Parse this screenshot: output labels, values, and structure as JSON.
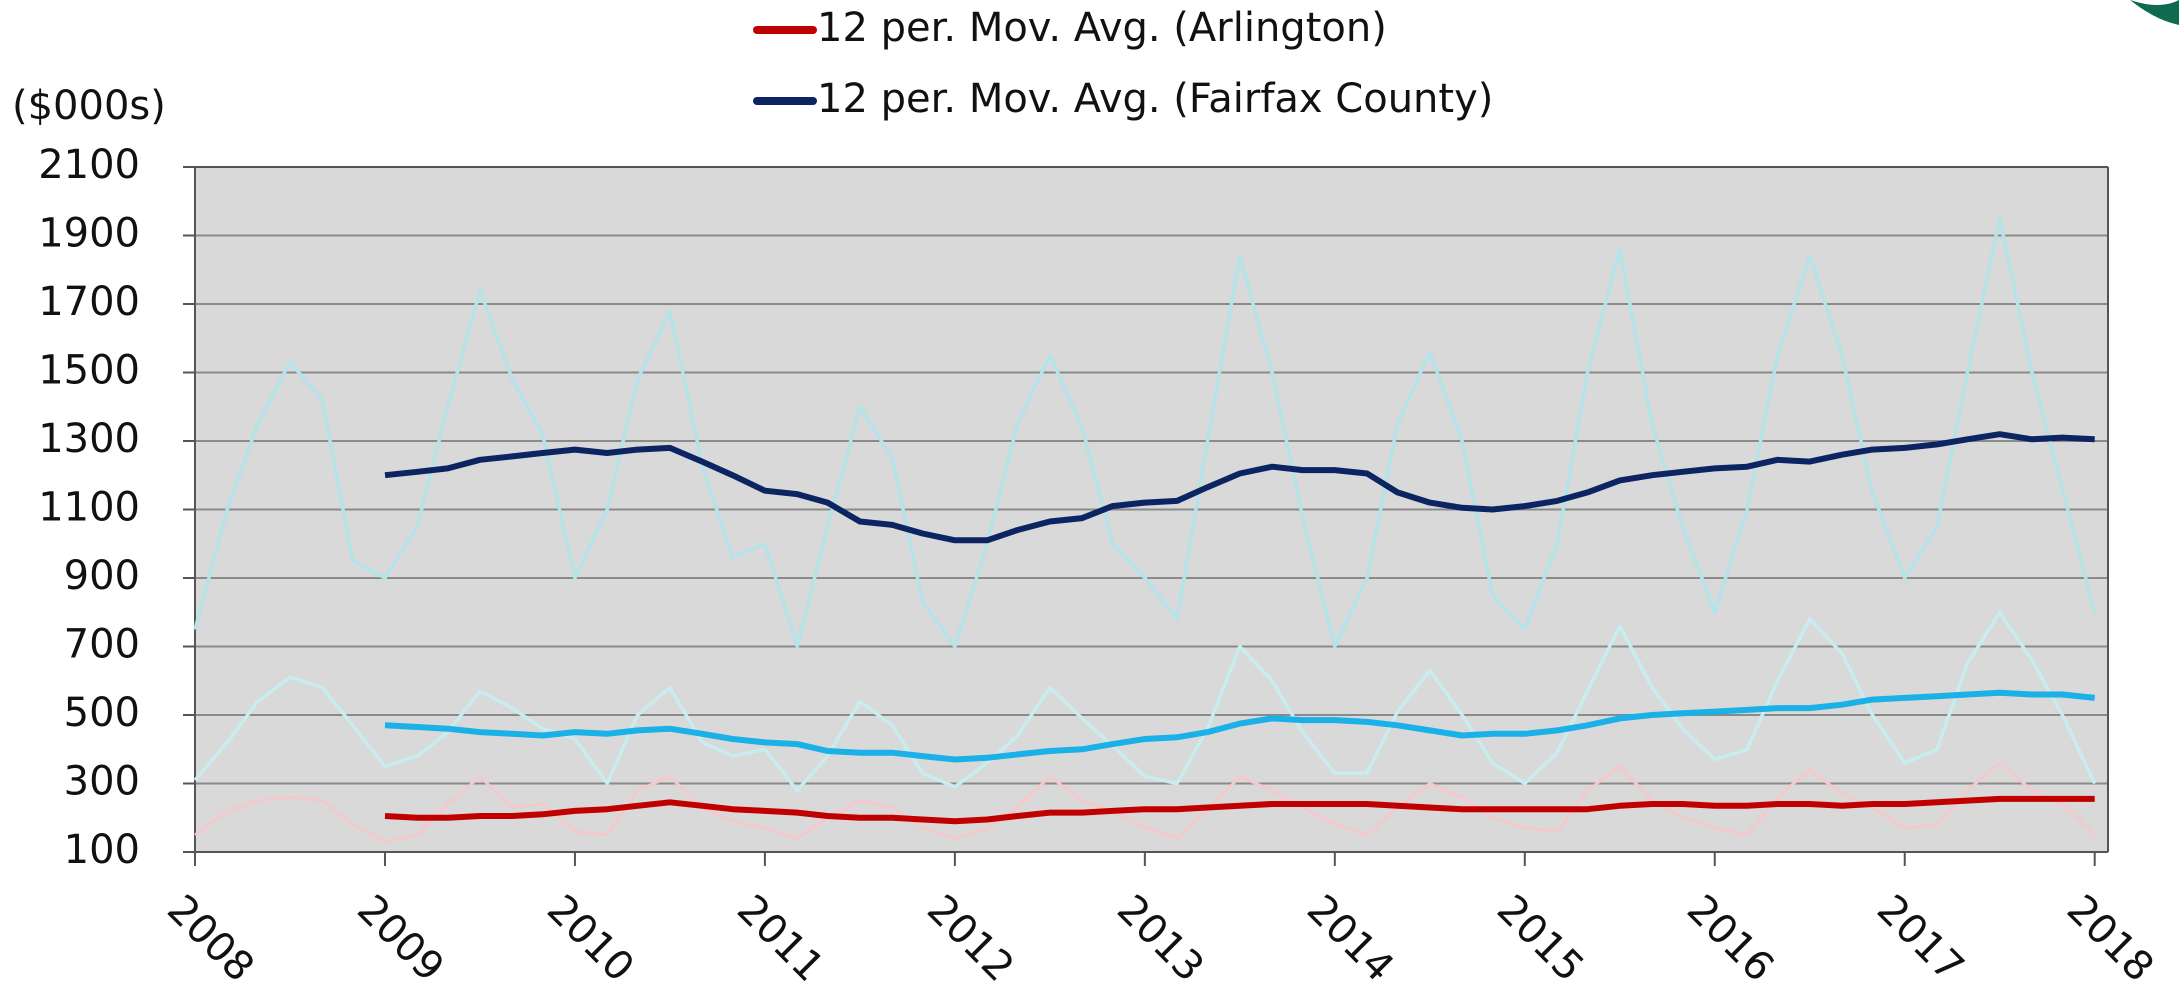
{
  "chart_data": {
    "type": "line",
    "ylabel": "($000s)",
    "x": [
      2008,
      2008.17,
      2008.33,
      2008.5,
      2008.67,
      2008.83,
      2009,
      2009.17,
      2009.33,
      2009.5,
      2009.67,
      2009.83,
      2010,
      2010.17,
      2010.33,
      2010.5,
      2010.67,
      2010.83,
      2011,
      2011.17,
      2011.33,
      2011.5,
      2011.67,
      2011.83,
      2012,
      2012.17,
      2012.33,
      2012.5,
      2012.67,
      2012.83,
      2013,
      2013.17,
      2013.33,
      2013.5,
      2013.67,
      2013.83,
      2014,
      2014.17,
      2014.33,
      2014.5,
      2014.67,
      2014.83,
      2015,
      2015.17,
      2015.33,
      2015.5,
      2015.67,
      2015.83,
      2016,
      2016.17,
      2016.33,
      2016.5,
      2016.67,
      2016.83,
      2017,
      2017.17,
      2017.33,
      2017.5,
      2017.67,
      2017.83,
      2018
    ],
    "xlim": [
      2008,
      2018.07
    ],
    "xticks": [
      2008,
      2009,
      2010,
      2011,
      2012,
      2013,
      2014,
      2015,
      2016,
      2017,
      2018
    ],
    "ylim": [
      100,
      2100
    ],
    "yticks": [
      100,
      300,
      500,
      700,
      900,
      1100,
      1300,
      1500,
      1700,
      1900,
      2100
    ],
    "grid": true,
    "series": [
      {
        "color": "#b5e3ea",
        "width": 3.5,
        "values": [
          750,
          1100,
          1350,
          1530,
          1420,
          950,
          900,
          1050,
          1400,
          1740,
          1480,
          1320,
          900,
          1100,
          1480,
          1680,
          1230,
          960,
          1000,
          700,
          1050,
          1400,
          1250,
          830,
          700,
          1000,
          1350,
          1550,
          1340,
          1000,
          900,
          780,
          1300,
          1840,
          1500,
          1080,
          700,
          900,
          1350,
          1560,
          1300,
          850,
          750,
          1000,
          1500,
          1860,
          1350,
          1050,
          800,
          1100,
          1550,
          1840,
          1550,
          1150,
          900,
          1050,
          1500,
          1950,
          1500,
          1160,
          800
        ]
      },
      {
        "color": "#c8edf0",
        "width": 3.5,
        "values": [
          310,
          420,
          540,
          610,
          580,
          470,
          350,
          380,
          450,
          570,
          520,
          460,
          430,
          300,
          500,
          580,
          420,
          380,
          400,
          280,
          380,
          540,
          470,
          330,
          290,
          360,
          440,
          580,
          490,
          410,
          320,
          300,
          460,
          700,
          600,
          450,
          330,
          330,
          510,
          630,
          500,
          360,
          300,
          390,
          570,
          760,
          580,
          460,
          370,
          400,
          600,
          780,
          680,
          500,
          360,
          400,
          650,
          800,
          660,
          500,
          300
        ]
      },
      {
        "color": "#f5c9cc",
        "width": 3,
        "values": [
          150,
          220,
          250,
          260,
          250,
          180,
          130,
          150,
          240,
          320,
          230,
          240,
          160,
          150,
          280,
          320,
          230,
          190,
          170,
          140,
          200,
          250,
          230,
          170,
          140,
          170,
          230,
          320,
          250,
          220,
          170,
          140,
          220,
          320,
          280,
          230,
          180,
          150,
          230,
          300,
          260,
          200,
          170,
          160,
          280,
          350,
          250,
          200,
          170,
          150,
          260,
          340,
          270,
          230,
          170,
          180,
          280,
          360,
          280,
          240,
          150
        ]
      },
      {
        "name": "12 per. Mov. Avg. (Arlington)",
        "color": "#c00000",
        "width": 6,
        "values": [
          null,
          null,
          null,
          null,
          null,
          null,
          205,
          200,
          200,
          205,
          205,
          210,
          220,
          225,
          235,
          245,
          235,
          225,
          220,
          215,
          205,
          200,
          200,
          195,
          190,
          195,
          205,
          215,
          215,
          220,
          225,
          225,
          230,
          235,
          240,
          240,
          240,
          240,
          235,
          230,
          225,
          225,
          225,
          225,
          225,
          235,
          240,
          240,
          235,
          235,
          240,
          240,
          235,
          240,
          240,
          245,
          250,
          255,
          255,
          255,
          255
        ]
      },
      {
        "color": "#1ab0e8",
        "width": 6,
        "values": [
          null,
          null,
          null,
          null,
          null,
          null,
          470,
          465,
          460,
          450,
          445,
          440,
          450,
          445,
          455,
          460,
          445,
          430,
          420,
          415,
          395,
          390,
          390,
          380,
          370,
          375,
          385,
          395,
          400,
          415,
          430,
          435,
          450,
          475,
          490,
          485,
          485,
          480,
          470,
          455,
          440,
          445,
          445,
          455,
          470,
          490,
          500,
          505,
          510,
          515,
          520,
          520,
          530,
          545,
          550,
          555,
          560,
          565,
          560,
          560,
          550
        ]
      },
      {
        "name": "12 per. Mov. Avg. (Fairfax County)",
        "color": "#0c2461",
        "width": 6,
        "values": [
          null,
          null,
          null,
          null,
          null,
          null,
          1200,
          1210,
          1220,
          1245,
          1255,
          1265,
          1275,
          1265,
          1275,
          1280,
          1240,
          1200,
          1155,
          1145,
          1120,
          1065,
          1055,
          1030,
          1010,
          1010,
          1040,
          1065,
          1075,
          1110,
          1120,
          1125,
          1165,
          1205,
          1225,
          1215,
          1215,
          1205,
          1150,
          1120,
          1105,
          1100,
          1110,
          1125,
          1150,
          1185,
          1200,
          1210,
          1220,
          1225,
          1245,
          1240,
          1260,
          1275,
          1280,
          1290,
          1305,
          1320,
          1305,
          1310,
          1305
        ]
      }
    ]
  }
}
